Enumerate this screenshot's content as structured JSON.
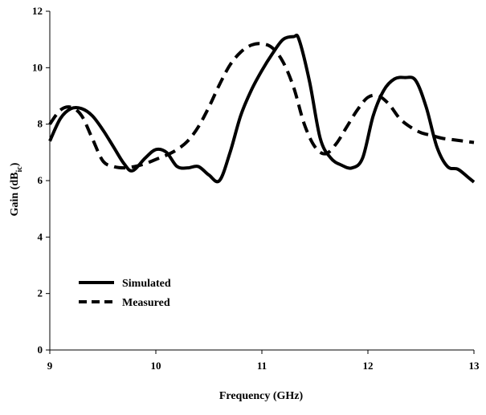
{
  "chart_data": {
    "type": "line",
    "title": "",
    "xlabel": "Frequency (GHz)",
    "ylabel": {
      "main": "Gain (dB",
      "sub": "ic",
      "close": ")"
    },
    "xlim": [
      9,
      13
    ],
    "ylim": [
      0,
      12
    ],
    "xticks": [
      9,
      10,
      11,
      12,
      13
    ],
    "yticks": [
      0,
      2,
      4,
      6,
      8,
      10,
      12
    ],
    "grid": false,
    "legend_position": "lower-left",
    "series": [
      {
        "name": "Simulated",
        "style": "solid",
        "color": "#000000",
        "x": [
          9.0,
          9.1,
          9.2,
          9.3,
          9.4,
          9.5,
          9.6,
          9.7,
          9.78,
          9.9,
          10.0,
          10.1,
          10.2,
          10.3,
          10.4,
          10.5,
          10.6,
          10.7,
          10.8,
          10.9,
          11.0,
          11.1,
          11.2,
          11.3,
          11.35,
          11.45,
          11.55,
          11.65,
          11.75,
          11.85,
          11.95,
          12.05,
          12.15,
          12.25,
          12.35,
          12.45,
          12.55,
          12.65,
          12.75,
          12.85,
          12.95,
          13.0
        ],
        "y": [
          7.4,
          8.2,
          8.55,
          8.55,
          8.3,
          7.8,
          7.2,
          6.6,
          6.35,
          6.8,
          7.1,
          7.0,
          6.5,
          6.45,
          6.5,
          6.2,
          6.0,
          7.0,
          8.3,
          9.2,
          9.9,
          10.5,
          11.0,
          11.1,
          11.0,
          9.5,
          7.5,
          6.8,
          6.55,
          6.45,
          6.8,
          8.3,
          9.2,
          9.6,
          9.65,
          9.55,
          8.6,
          7.2,
          6.5,
          6.4,
          6.1,
          5.95
        ]
      },
      {
        "name": "Measured",
        "style": "dashed",
        "color": "#000000",
        "x": [
          9.0,
          9.1,
          9.2,
          9.3,
          9.4,
          9.5,
          9.6,
          9.7,
          9.8,
          9.9,
          10.0,
          10.1,
          10.2,
          10.3,
          10.4,
          10.5,
          10.6,
          10.7,
          10.8,
          10.9,
          11.0,
          11.1,
          11.2,
          11.3,
          11.4,
          11.5,
          11.6,
          11.7,
          11.8,
          11.9,
          12.0,
          12.1,
          12.2,
          12.3,
          12.4,
          12.5,
          12.6,
          12.7,
          12.8,
          12.9,
          13.0
        ],
        "y": [
          8.0,
          8.5,
          8.6,
          8.3,
          7.5,
          6.7,
          6.5,
          6.45,
          6.5,
          6.6,
          6.75,
          6.9,
          7.1,
          7.4,
          7.9,
          8.6,
          9.4,
          10.1,
          10.55,
          10.8,
          10.85,
          10.7,
          10.2,
          9.3,
          8.0,
          7.2,
          6.95,
          7.3,
          7.9,
          8.5,
          8.95,
          9.0,
          8.7,
          8.2,
          7.9,
          7.7,
          7.6,
          7.5,
          7.45,
          7.4,
          7.35
        ]
      }
    ]
  }
}
